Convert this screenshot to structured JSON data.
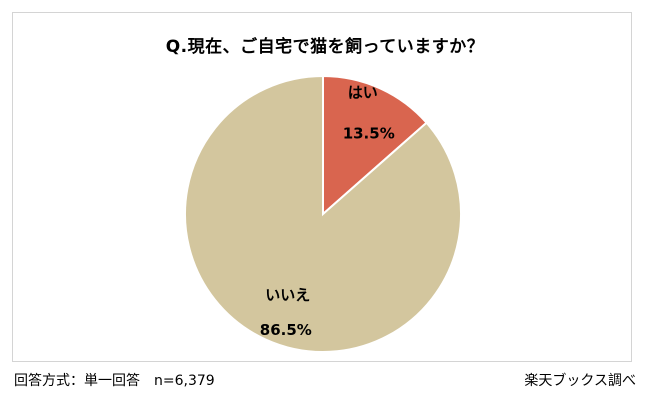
{
  "chart_data": {
    "type": "pie",
    "title": "Q.現在、ご自宅で猫を飼っていますか？",
    "slices": [
      {
        "label": "はい",
        "value": 13.5,
        "value_label": "13.5%",
        "color": "#d9654f"
      },
      {
        "label": "いいえ",
        "value": 86.5,
        "value_label": "86.5%",
        "color": "#d3c69e"
      }
    ]
  },
  "footer": {
    "method": "回答方式：単一回答　n=6,379",
    "source": "楽天ブックス調べ"
  }
}
